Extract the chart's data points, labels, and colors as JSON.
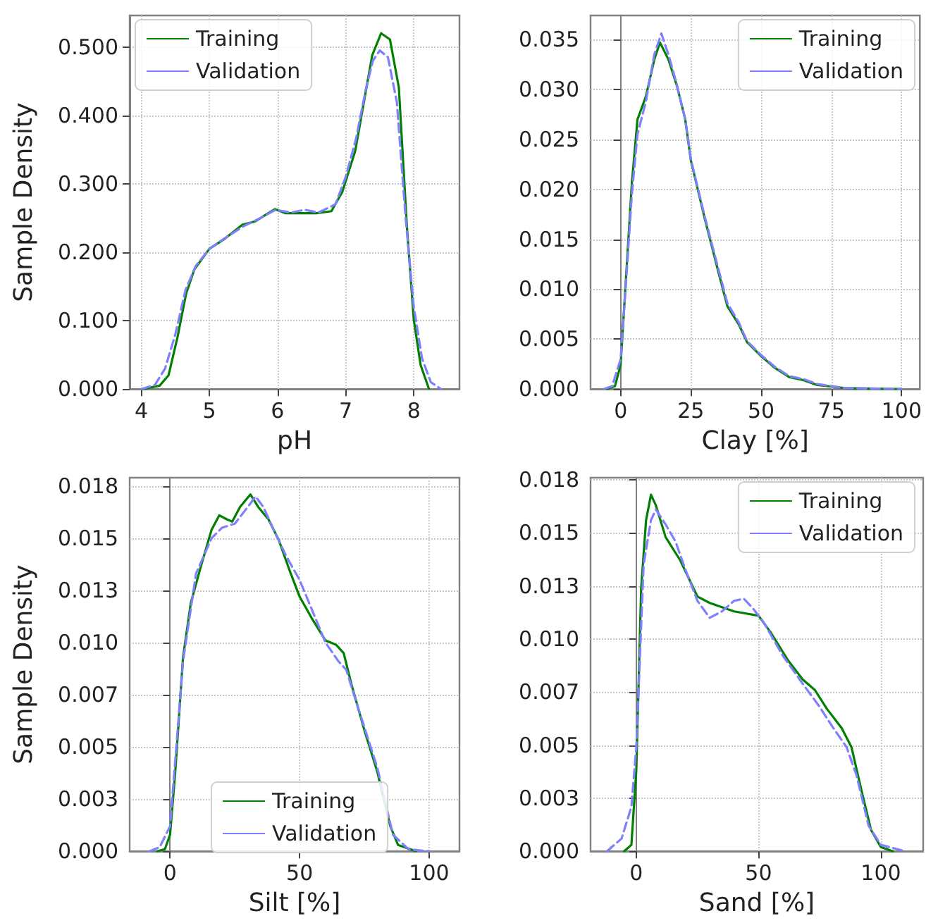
{
  "chart_data": [
    {
      "type": "line",
      "xlabel": "pH",
      "ylabel": "Sample Density",
      "xlim": [
        3.83,
        8.67
      ],
      "ylim": [
        0,
        0.546
      ],
      "xticks": [
        4,
        5,
        6,
        7,
        8
      ],
      "yticks": [
        {
          "value": 0,
          "label": "0.000"
        },
        {
          "value": 0.1,
          "label": "0.100"
        },
        {
          "value": 0.2,
          "label": "0.200"
        },
        {
          "value": 0.3,
          "label": "0.300"
        },
        {
          "value": 0.4,
          "label": "0.400"
        },
        {
          "value": 0.5,
          "label": "0.500"
        }
      ],
      "grid": true,
      "legend": "top left",
      "marker": "none",
      "series": [
        {
          "name": "Training",
          "color": "#008000",
          "line_style": "solid",
          "x": [
            4.02,
            4.27,
            4.4,
            4.53,
            4.66,
            4.78,
            5.0,
            5.23,
            5.48,
            5.67,
            5.83,
            5.96,
            6.12,
            6.57,
            6.79,
            6.95,
            7.14,
            7.27,
            7.39,
            7.52,
            7.65,
            7.78,
            7.9,
            8.0,
            8.1,
            8.22
          ],
          "values": [
            0,
            0.005,
            0.02,
            0.075,
            0.14,
            0.175,
            0.205,
            0.22,
            0.24,
            0.245,
            0.255,
            0.263,
            0.257,
            0.257,
            0.26,
            0.288,
            0.348,
            0.421,
            0.488,
            0.52,
            0.511,
            0.441,
            0.235,
            0.101,
            0.035,
            0.001
          ]
        },
        {
          "name": "Validation",
          "color": "#7f7fff",
          "line_style": "dashed",
          "x": [
            4.0,
            4.2,
            4.35,
            4.5,
            4.65,
            4.8,
            5.0,
            5.25,
            5.5,
            5.75,
            5.97,
            6.2,
            6.4,
            6.6,
            6.85,
            7.0,
            7.15,
            7.3,
            7.4,
            7.5,
            7.62,
            7.75,
            7.88,
            8.0,
            8.12,
            8.25,
            8.4
          ],
          "values": [
            0,
            0.006,
            0.03,
            0.08,
            0.145,
            0.18,
            0.205,
            0.222,
            0.238,
            0.25,
            0.262,
            0.258,
            0.262,
            0.258,
            0.27,
            0.31,
            0.365,
            0.44,
            0.48,
            0.495,
            0.485,
            0.42,
            0.25,
            0.12,
            0.045,
            0.01,
            0
          ]
        }
      ]
    },
    {
      "type": "line",
      "xlabel": "Clay [%]",
      "xlim": [
        -10.7,
        106.5
      ],
      "ylim": [
        0,
        0.0374
      ],
      "xticks": [
        0,
        25,
        50,
        75,
        100
      ],
      "yticks": [
        {
          "value": 0,
          "label": "0.000"
        },
        {
          "value": 0.005,
          "label": "0.005"
        },
        {
          "value": 0.01,
          "label": "0.010"
        },
        {
          "value": 0.015,
          "label": "0.015"
        },
        {
          "value": 0.02,
          "label": "0.020"
        },
        {
          "value": 0.025,
          "label": "0.025"
        },
        {
          "value": 0.03,
          "label": "0.030"
        },
        {
          "value": 0.035,
          "label": "0.035"
        }
      ],
      "grid": true,
      "legend": "top right",
      "marker": "none",
      "series": [
        {
          "name": "Training",
          "color": "#008000",
          "line_style": "solid",
          "x": [
            -5,
            -2,
            0,
            2,
            4,
            6,
            9,
            12,
            14,
            17,
            20,
            23,
            25,
            30,
            35,
            38,
            42,
            45,
            50,
            55,
            60,
            65,
            70,
            80,
            100
          ],
          "values": [
            0,
            0.0003,
            0.0024,
            0.0115,
            0.0206,
            0.027,
            0.0293,
            0.033,
            0.0347,
            0.033,
            0.0304,
            0.027,
            0.0229,
            0.017,
            0.0115,
            0.0083,
            0.0065,
            0.0047,
            0.0033,
            0.0021,
            0.0012,
            0.0009,
            0.0004,
            0.0001,
            0
          ]
        },
        {
          "name": "Validation",
          "color": "#7f7fff",
          "line_style": "dashed",
          "x": [
            -6,
            -3,
            0,
            2,
            4,
            6,
            9,
            12,
            14.5,
            17,
            20,
            23,
            25,
            30,
            35,
            38,
            42,
            45,
            50,
            55,
            60,
            65,
            70,
            80,
            100
          ],
          "values": [
            0,
            0.0003,
            0.003,
            0.011,
            0.0195,
            0.0255,
            0.0288,
            0.0335,
            0.0356,
            0.0335,
            0.0305,
            0.027,
            0.023,
            0.0172,
            0.0118,
            0.0086,
            0.0067,
            0.0048,
            0.0034,
            0.0022,
            0.0013,
            0.001,
            0.0005,
            0.0001,
            0
          ]
        }
      ]
    },
    {
      "type": "line",
      "xlabel": "Silt [%]",
      "ylabel": "Sample Density",
      "xlim": [
        -15.6,
        111.7
      ],
      "ylim": [
        0,
        0.0179
      ],
      "xticks": [
        0,
        50,
        100
      ],
      "yticks": [
        {
          "value": 0,
          "label": "0.000"
        },
        {
          "value": 0.0025,
          "label": "0.003"
        },
        {
          "value": 0.005,
          "label": "0.005"
        },
        {
          "value": 0.0075,
          "label": "0.007"
        },
        {
          "value": 0.01,
          "label": "0.010"
        },
        {
          "value": 0.0125,
          "label": "0.013"
        },
        {
          "value": 0.015,
          "label": "0.015"
        },
        {
          "value": 0.0175,
          "label": "0.018"
        }
      ],
      "grid": true,
      "legend": "bottom",
      "marker": "none",
      "series": [
        {
          "name": "Training",
          "color": "#008000",
          "line_style": "solid",
          "x": [
            -5,
            -2,
            0,
            2,
            5,
            8,
            12,
            16,
            19,
            22,
            24,
            27,
            31,
            34,
            38,
            42,
            46,
            50,
            55,
            60,
            64,
            67,
            70,
            75,
            80,
            85,
            88,
            95
          ],
          "values": [
            0,
            0.0001,
            0.0008,
            0.0038,
            0.0093,
            0.0119,
            0.0137,
            0.0154,
            0.0161,
            0.0159,
            0.0158,
            0.0165,
            0.0171,
            0.0165,
            0.0159,
            0.0149,
            0.0135,
            0.0122,
            0.0111,
            0.0101,
            0.0099,
            0.0095,
            0.008,
            0.0058,
            0.0038,
            0.0012,
            0.0003,
            0
          ]
        },
        {
          "name": "Validation",
          "color": "#7f7fff",
          "line_style": "dashed",
          "x": [
            -8,
            -4,
            0,
            5,
            10,
            16,
            20,
            25,
            30,
            33,
            36,
            40,
            45,
            50,
            55,
            60,
            65,
            68,
            72,
            80,
            86,
            92,
            100
          ],
          "values": [
            0,
            0.0002,
            0.0012,
            0.0091,
            0.0133,
            0.015,
            0.0155,
            0.0157,
            0.0165,
            0.017,
            0.0165,
            0.0154,
            0.0141,
            0.013,
            0.0115,
            0.01,
            0.0091,
            0.0087,
            0.0071,
            0.004,
            0.0008,
            0.0001,
            0
          ]
        }
      ]
    },
    {
      "type": "line",
      "xlabel": "Sand [%]",
      "xlim": [
        -18.7,
        117.3
      ],
      "ylim": [
        0,
        0.0176
      ],
      "xticks": [
        0,
        50,
        100
      ],
      "yticks": [
        {
          "value": 0,
          "label": "0.000"
        },
        {
          "value": 0.0025,
          "label": "0.003"
        },
        {
          "value": 0.005,
          "label": "0.005"
        },
        {
          "value": 0.0075,
          "label": "0.007"
        },
        {
          "value": 0.01,
          "label": "0.010"
        },
        {
          "value": 0.0125,
          "label": "0.013"
        },
        {
          "value": 0.015,
          "label": "0.015"
        },
        {
          "value": 0.0175,
          "label": "0.018"
        }
      ],
      "grid": true,
      "legend": "top right",
      "marker": "none",
      "series": [
        {
          "name": "Training",
          "color": "#008000",
          "line_style": "solid",
          "x": [
            -5,
            -2,
            0,
            2,
            4,
            6,
            8,
            12,
            18,
            25,
            30,
            40,
            50,
            55,
            62,
            68,
            73,
            78,
            84,
            88,
            92,
            96,
            100,
            105
          ],
          "values": [
            0,
            0.0003,
            0.0038,
            0.0124,
            0.0156,
            0.0168,
            0.0163,
            0.0148,
            0.0137,
            0.012,
            0.0117,
            0.0113,
            0.0111,
            0.0103,
            0.009,
            0.0081,
            0.0076,
            0.0067,
            0.0058,
            0.0049,
            0.0029,
            0.001,
            0.0002,
            0
          ]
        },
        {
          "name": "Validation",
          "color": "#7f7fff",
          "line_style": "dashed",
          "x": [
            -12,
            -6,
            -2,
            0,
            3,
            6,
            8,
            12,
            16,
            20,
            25,
            30,
            35,
            40,
            44,
            48,
            52,
            60,
            68,
            75,
            80,
            86,
            90,
            95,
            100,
            110
          ],
          "values": [
            0,
            0.0006,
            0.0021,
            0.0049,
            0.0135,
            0.0156,
            0.0161,
            0.0154,
            0.0146,
            0.0133,
            0.0118,
            0.011,
            0.0113,
            0.0118,
            0.0119,
            0.0114,
            0.0108,
            0.0092,
            0.0079,
            0.0068,
            0.0059,
            0.0049,
            0.0036,
            0.0012,
            0.0003,
            0
          ]
        }
      ]
    }
  ]
}
